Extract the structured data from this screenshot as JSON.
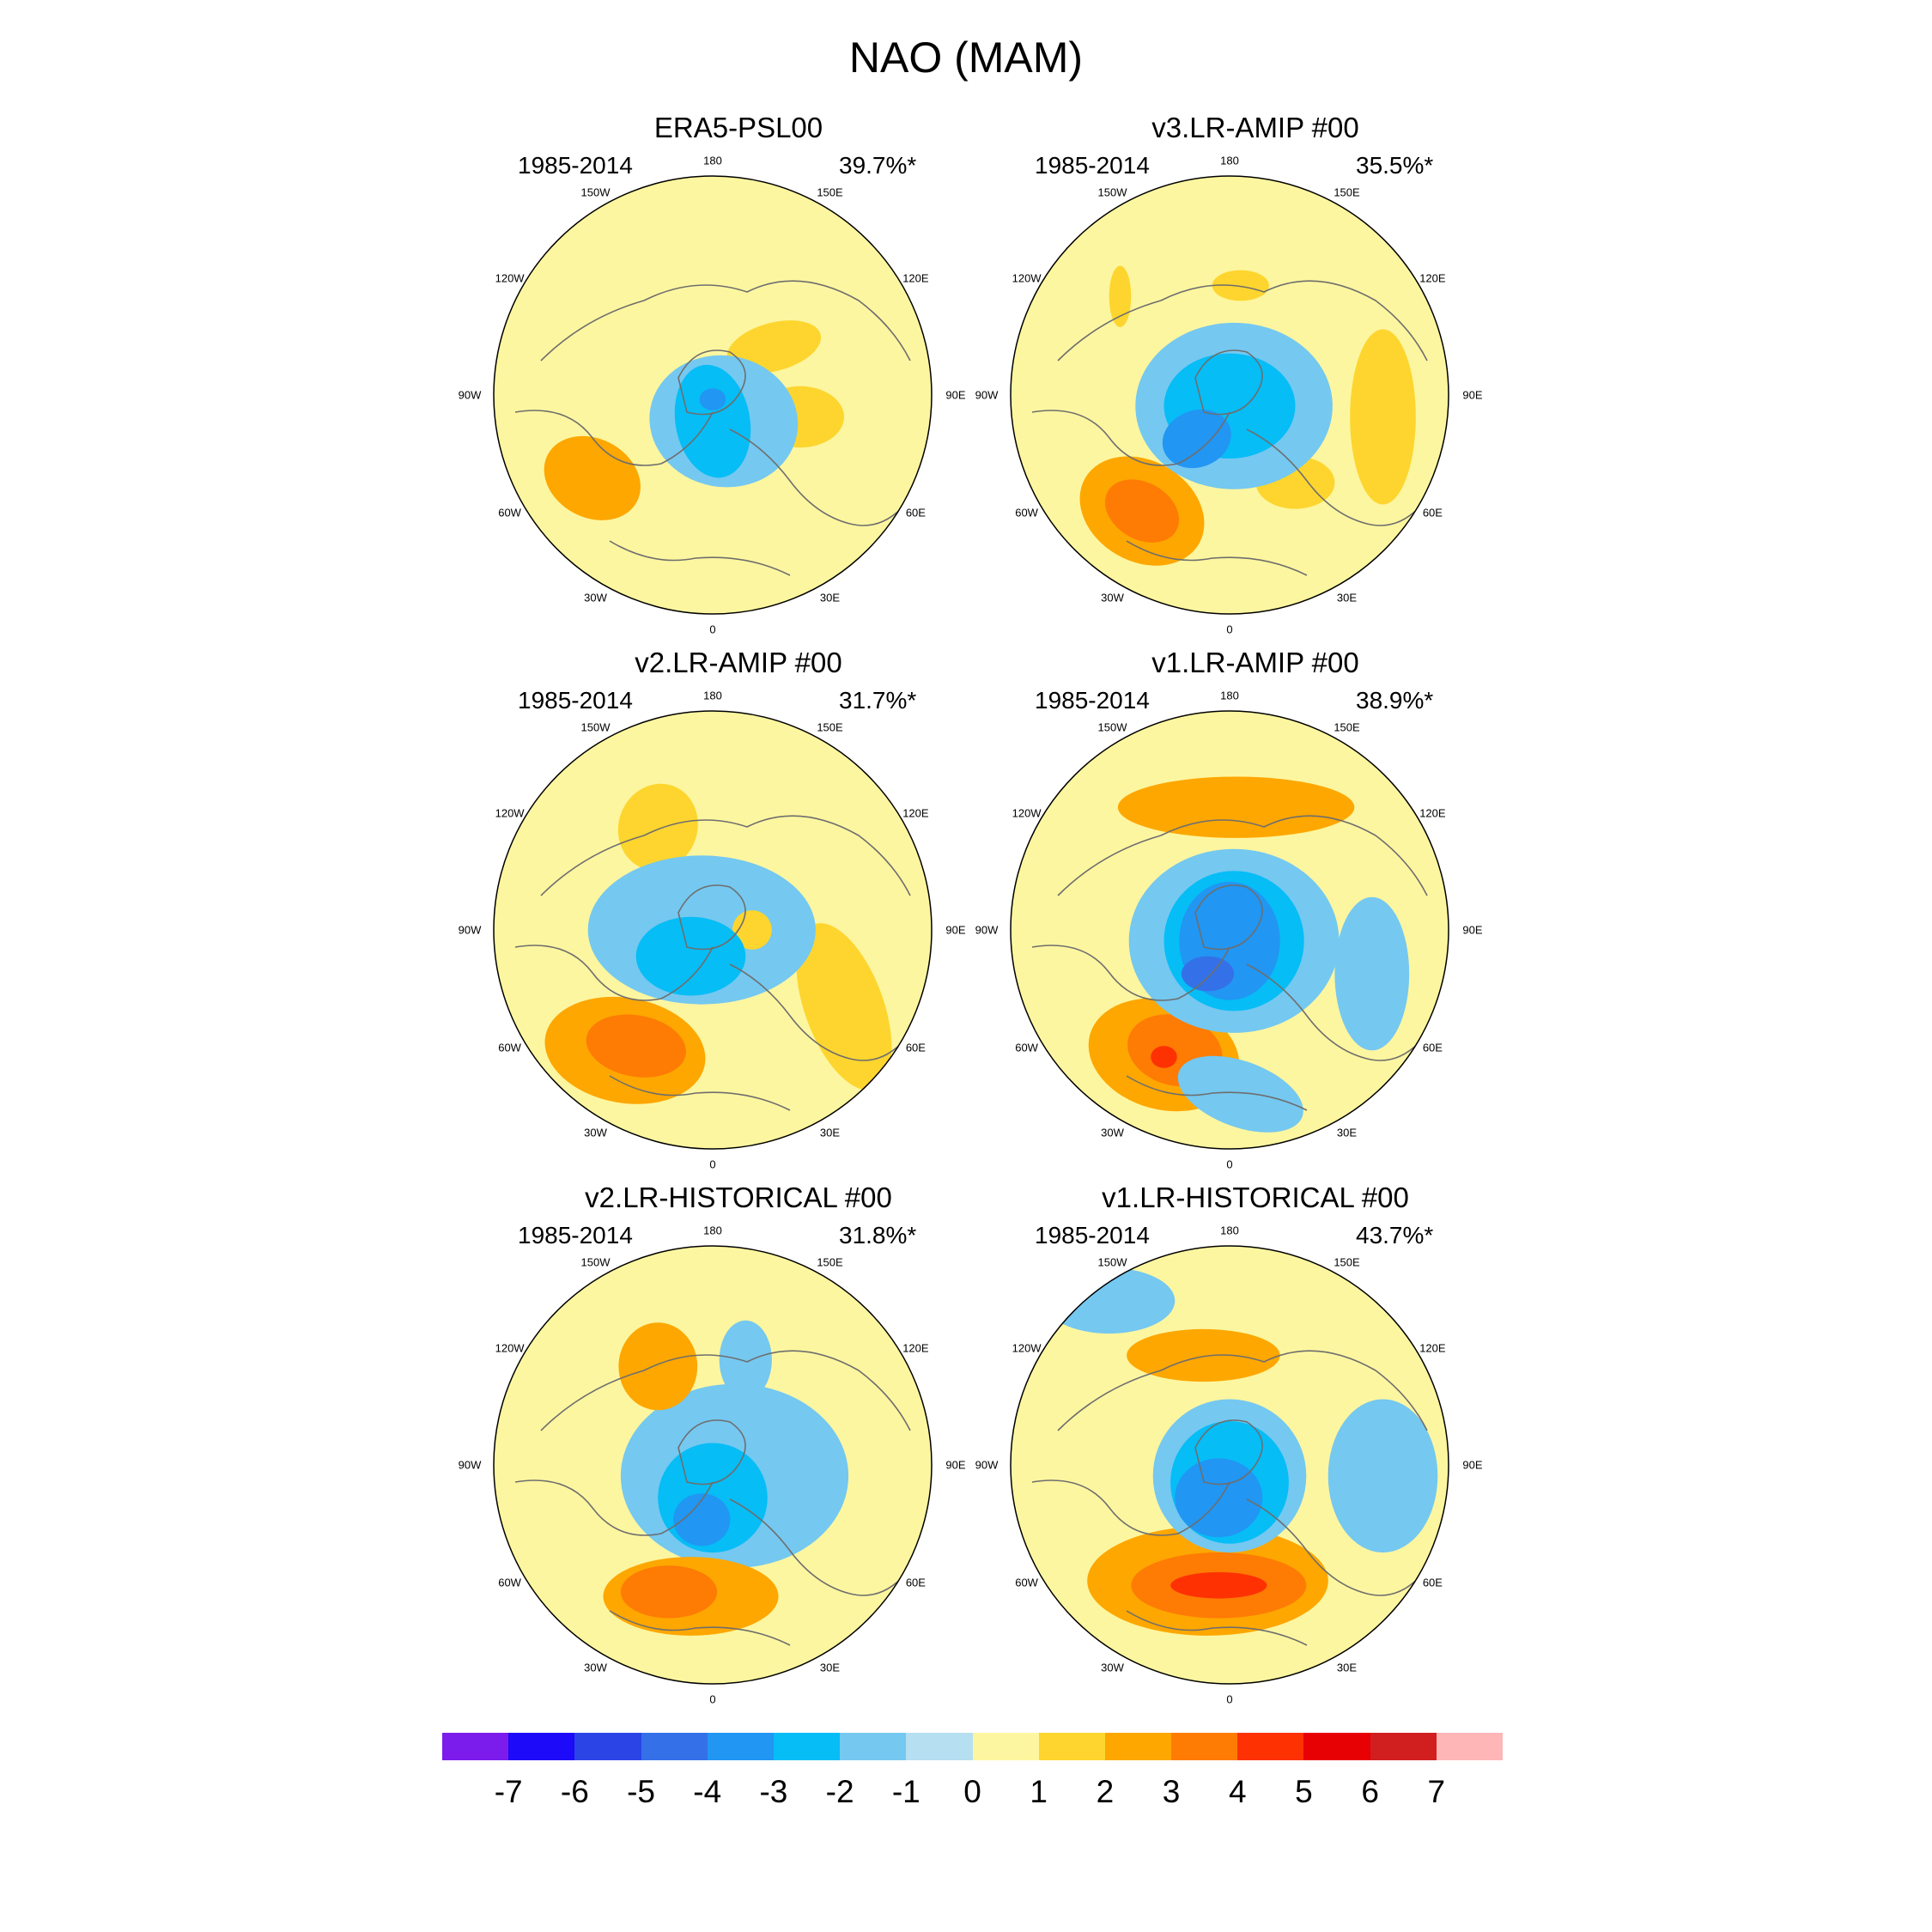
{
  "title": "NAO (MAM)",
  "lon_labels": [
    "180",
    "150E",
    "120E",
    "90E",
    "60E",
    "30E",
    "0",
    "30W",
    "60W",
    "90W",
    "120W",
    "150W"
  ],
  "panels": [
    {
      "title": "ERA5-PSL00",
      "years": "1985-2014",
      "percent": "39.7%*",
      "features": [
        {
          "c": 1,
          "t": "e",
          "p": [
            0.28,
            -0.22,
            0.22,
            0.11,
            -15
          ]
        },
        {
          "c": 1,
          "t": "e",
          "p": [
            0.4,
            0.1,
            0.2,
            0.14,
            0
          ]
        },
        {
          "c": 2,
          "t": "e",
          "p": [
            -0.55,
            0.38,
            0.23,
            0.18,
            28
          ]
        },
        {
          "c": -1,
          "t": "e",
          "p": [
            0.05,
            0.12,
            0.34,
            0.3,
            10
          ]
        },
        {
          "c": -2,
          "t": "e",
          "p": [
            0.0,
            0.12,
            0.17,
            0.26,
            -10
          ]
        },
        {
          "c": -3,
          "t": "e",
          "p": [
            0.0,
            0.02,
            0.06,
            0.05,
            0
          ]
        }
      ]
    },
    {
      "title": "v3.LR-AMIP  #00",
      "years": "1985-2014",
      "percent": "35.5%*",
      "features": [
        {
          "c": 1,
          "t": "e",
          "p": [
            0.05,
            -0.5,
            0.13,
            0.07,
            0
          ]
        },
        {
          "c": 1,
          "t": "e",
          "p": [
            -0.5,
            -0.45,
            0.05,
            0.14,
            0
          ]
        },
        {
          "c": 1,
          "t": "e",
          "p": [
            0.7,
            0.1,
            0.15,
            0.4,
            0
          ]
        },
        {
          "c": 1,
          "t": "e",
          "p": [
            0.3,
            0.4,
            0.18,
            0.12,
            0
          ]
        },
        {
          "c": 2,
          "t": "e",
          "p": [
            -0.4,
            0.53,
            0.3,
            0.23,
            30
          ]
        },
        {
          "c": 3,
          "t": "e",
          "p": [
            -0.4,
            0.53,
            0.18,
            0.13,
            30
          ]
        },
        {
          "c": -1,
          "t": "e",
          "p": [
            0.02,
            0.05,
            0.45,
            0.38,
            0
          ]
        },
        {
          "c": -2,
          "t": "e",
          "p": [
            0.0,
            0.05,
            0.3,
            0.24,
            0
          ]
        },
        {
          "c": -3,
          "t": "e",
          "p": [
            -0.15,
            0.2,
            0.16,
            0.13,
            -20
          ]
        }
      ]
    },
    {
      "title": "v2.LR-AMIP  #00",
      "years": "1985-2014",
      "percent": "31.7%*",
      "features": [
        {
          "c": 1,
          "t": "e",
          "p": [
            -0.25,
            -0.47,
            0.18,
            0.2,
            20
          ]
        },
        {
          "c": 1,
          "t": "e",
          "p": [
            0.6,
            0.35,
            0.18,
            0.4,
            -20
          ]
        },
        {
          "c": 2,
          "t": "e",
          "p": [
            -0.4,
            0.55,
            0.37,
            0.24,
            10
          ]
        },
        {
          "c": 3,
          "t": "e",
          "p": [
            -0.35,
            0.53,
            0.23,
            0.14,
            10
          ]
        },
        {
          "c": -1,
          "t": "e",
          "p": [
            -0.05,
            0.0,
            0.52,
            0.34,
            0
          ]
        },
        {
          "c": 1,
          "t": "e",
          "p": [
            0.18,
            0.0,
            0.09,
            0.09,
            0
          ]
        },
        {
          "c": -2,
          "t": "e",
          "p": [
            -0.1,
            0.12,
            0.25,
            0.18,
            0
          ]
        }
      ]
    },
    {
      "title": "v1.LR-AMIP  #00",
      "years": "1985-2014",
      "percent": "38.9%*",
      "features": [
        {
          "c": 2,
          "t": "e",
          "p": [
            0.03,
            -0.56,
            0.54,
            0.14,
            0
          ]
        },
        {
          "c": 2,
          "t": "e",
          "p": [
            -0.3,
            0.57,
            0.35,
            0.25,
            15
          ]
        },
        {
          "c": 3,
          "t": "e",
          "p": [
            -0.25,
            0.55,
            0.22,
            0.16,
            15
          ]
        },
        {
          "c": 4,
          "t": "e",
          "p": [
            -0.3,
            0.58,
            0.06,
            0.05,
            0
          ]
        },
        {
          "c": -1,
          "t": "e",
          "p": [
            0.65,
            0.2,
            0.17,
            0.35,
            0
          ]
        },
        {
          "c": -1,
          "t": "e",
          "p": [
            0.05,
            0.75,
            0.3,
            0.15,
            20
          ]
        },
        {
          "c": -1,
          "t": "e",
          "p": [
            0.02,
            0.05,
            0.48,
            0.42,
            0
          ]
        },
        {
          "c": -2,
          "t": "e",
          "p": [
            0.02,
            0.05,
            0.32,
            0.32,
            0
          ]
        },
        {
          "c": -3,
          "t": "e",
          "p": [
            0.0,
            0.05,
            0.23,
            0.27,
            0
          ]
        },
        {
          "c": -4,
          "t": "e",
          "p": [
            -0.1,
            0.2,
            0.12,
            0.08,
            0
          ]
        }
      ]
    },
    {
      "title": "v2.LR-HISTORICAL  #00",
      "years": "1985-2014",
      "percent": "31.8%*",
      "features": [
        {
          "c": -1,
          "t": "e",
          "p": [
            0.1,
            0.05,
            0.52,
            0.42,
            0
          ]
        },
        {
          "c": -1,
          "t": "e",
          "p": [
            0.15,
            -0.48,
            0.12,
            0.18,
            0
          ]
        },
        {
          "c": 2,
          "t": "e",
          "p": [
            -0.25,
            -0.45,
            0.18,
            0.2,
            0
          ]
        },
        {
          "c": 2,
          "t": "e",
          "p": [
            -0.1,
            0.6,
            0.4,
            0.18,
            0
          ]
        },
        {
          "c": 3,
          "t": "e",
          "p": [
            -0.2,
            0.58,
            0.22,
            0.12,
            0
          ]
        },
        {
          "c": -2,
          "t": "e",
          "p": [
            0.0,
            0.15,
            0.25,
            0.25,
            0
          ]
        },
        {
          "c": -3,
          "t": "e",
          "p": [
            -0.05,
            0.25,
            0.13,
            0.12,
            0
          ]
        }
      ]
    },
    {
      "title": "v1.LR-HISTORICAL  #00",
      "years": "1985-2014",
      "percent": "43.7%*",
      "features": [
        {
          "c": -1,
          "t": "e",
          "p": [
            -0.55,
            -0.75,
            0.3,
            0.15,
            0
          ]
        },
        {
          "c": -1,
          "t": "e",
          "p": [
            0.7,
            0.05,
            0.25,
            0.35,
            0
          ]
        },
        {
          "c": 2,
          "t": "e",
          "p": [
            -0.12,
            -0.5,
            0.35,
            0.12,
            0
          ]
        },
        {
          "c": 2,
          "t": "e",
          "p": [
            -0.1,
            0.53,
            0.55,
            0.25,
            0
          ]
        },
        {
          "c": 3,
          "t": "e",
          "p": [
            -0.05,
            0.55,
            0.4,
            0.15,
            0
          ]
        },
        {
          "c": 4,
          "t": "e",
          "p": [
            -0.05,
            0.55,
            0.22,
            0.06,
            0
          ]
        },
        {
          "c": -1,
          "t": "e",
          "p": [
            0.0,
            0.05,
            0.35,
            0.35,
            0
          ]
        },
        {
          "c": -2,
          "t": "e",
          "p": [
            0.0,
            0.08,
            0.27,
            0.28,
            0
          ]
        },
        {
          "c": -3,
          "t": "e",
          "p": [
            -0.05,
            0.15,
            0.2,
            0.18,
            0
          ]
        }
      ]
    }
  ],
  "colorbar": {
    "colors": [
      "#7b1bec",
      "#1c0af8",
      "#2b44e6",
      "#3471e8",
      "#2196f3",
      "#06bdf6",
      "#75c8f0",
      "#b6dff2",
      "#fdf6a0",
      "#fdd52e",
      "#fda700",
      "#fe7b04",
      "#fe3103",
      "#e70004",
      "#d11e1e",
      "#ffb6b7"
    ],
    "labels": [
      "-7",
      "-6",
      "-5",
      "-4",
      "-3",
      "-2",
      "-1",
      "0",
      "1",
      "2",
      "3",
      "4",
      "5",
      "6",
      "7"
    ]
  }
}
